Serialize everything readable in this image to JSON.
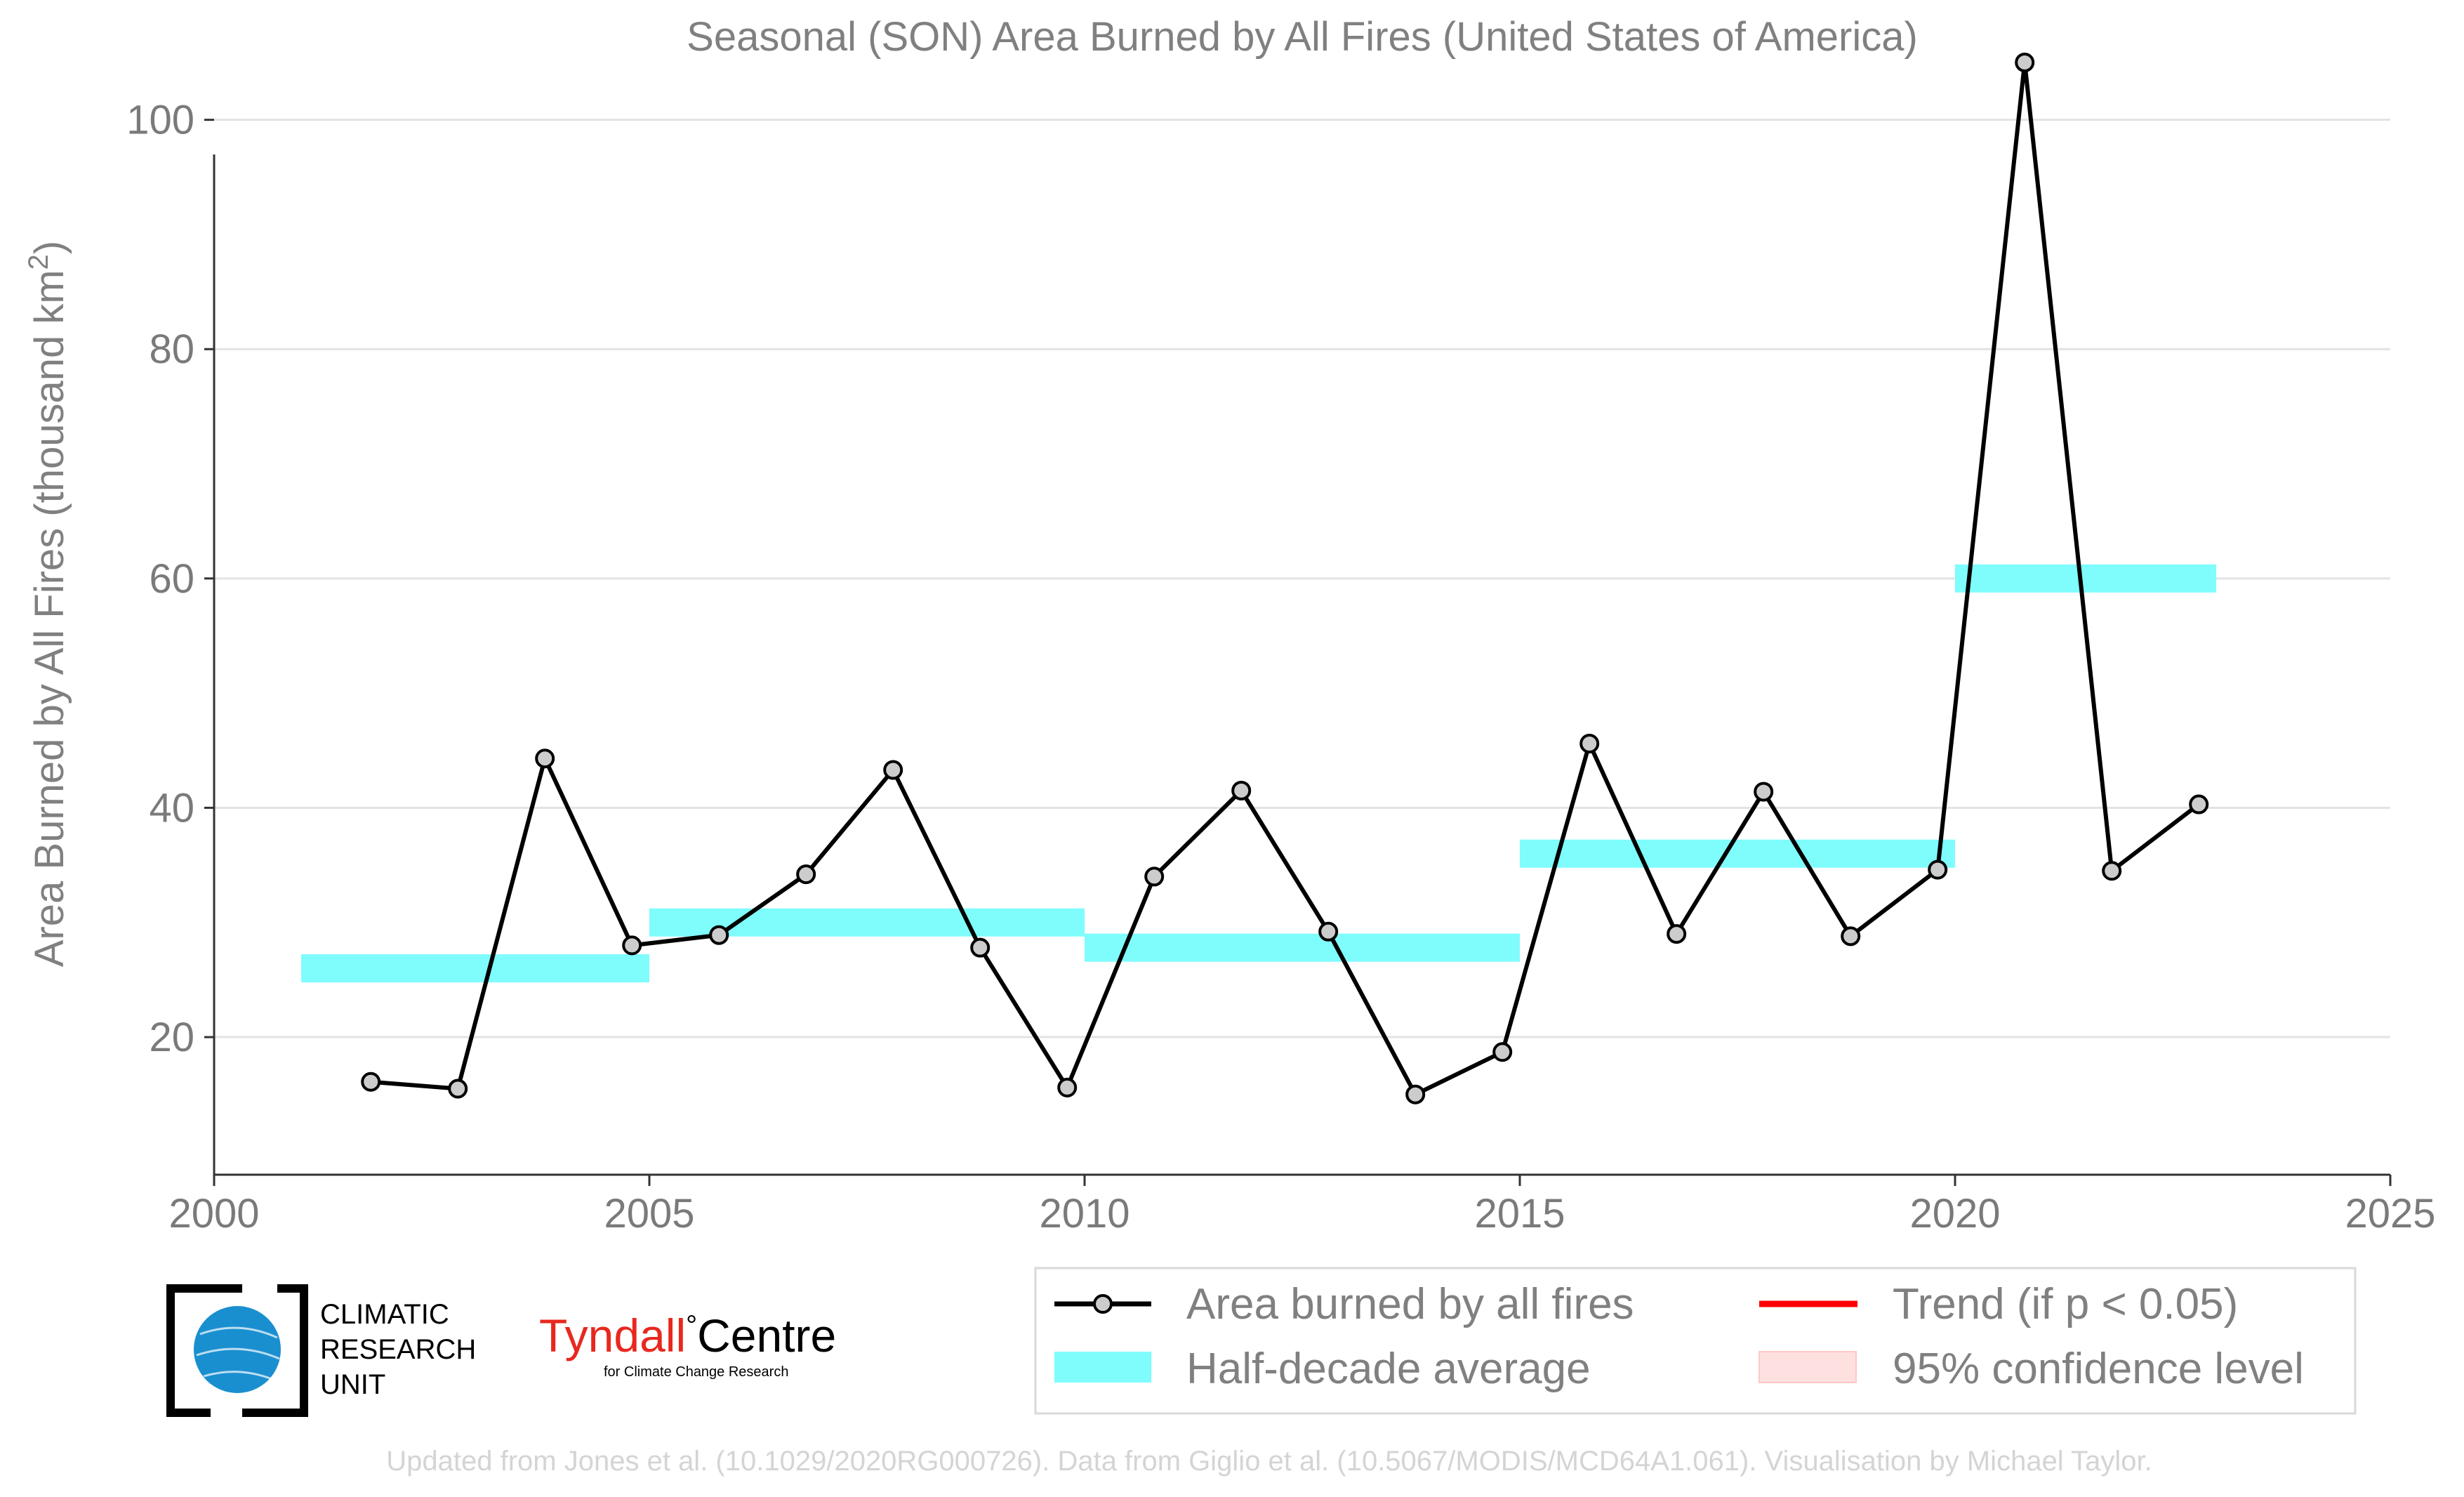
{
  "chart_data": {
    "type": "line",
    "title": "Seasonal (SON) Area Burned by All Fires (United States of America)",
    "ylabel": "Area Burned by All Fires (thousand km",
    "ylabel_superscript": "2",
    "ylabel_suffix": ")",
    "xlabel": "",
    "xlim": [
      2000,
      2025
    ],
    "ylim": [
      8,
      108
    ],
    "xticks": [
      2000,
      2005,
      2010,
      2015,
      2020,
      2025
    ],
    "yticks": [
      20,
      40,
      60,
      80,
      100
    ],
    "grid": true,
    "series": [
      {
        "name": "Area burned by all fires",
        "color": "#000000",
        "marker_fill": "#cccccc",
        "x": [
          2001.8,
          2002.8,
          2003.8,
          2004.8,
          2005.8,
          2006.8,
          2007.8,
          2008.8,
          2009.8,
          2010.8,
          2011.8,
          2012.8,
          2013.8,
          2014.8,
          2015.8,
          2016.8,
          2017.8,
          2018.8,
          2019.8,
          2020.8,
          2021.8,
          2022.8
        ],
        "y": [
          16.1,
          15.5,
          44.3,
          28.0,
          28.9,
          34.2,
          43.3,
          27.8,
          15.6,
          34.0,
          41.5,
          29.2,
          15.0,
          18.7,
          45.6,
          29.0,
          41.4,
          28.8,
          34.6,
          105.0,
          34.5,
          40.3
        ]
      }
    ],
    "half_decade_average": {
      "name": "Half-decade average",
      "color": "#7ffcfc",
      "segments": [
        {
          "x0": 2001,
          "x1": 2005,
          "y": 26.0
        },
        {
          "x0": 2005,
          "x1": 2010,
          "y": 30.0
        },
        {
          "x0": 2010,
          "x1": 2015,
          "y": 27.8
        },
        {
          "x0": 2015,
          "x1": 2020,
          "y": 36.0
        },
        {
          "x0": 2020,
          "x1": 2023,
          "y": 60.0
        }
      ]
    },
    "legend": {
      "placement": "bottom-right",
      "items": [
        {
          "label": "Area burned by all fires",
          "kind": "line-marker",
          "color": "#000000"
        },
        {
          "label": "Trend (if p < 0.05)",
          "kind": "line",
          "color": "#ff0000"
        },
        {
          "label": "Half-decade average",
          "kind": "band",
          "color": "#7ffcfc"
        },
        {
          "label": "95% confidence level",
          "kind": "patch",
          "color": "#ffe0e0"
        }
      ]
    }
  },
  "logos": {
    "cru_line1": "CLIMATIC",
    "cru_line2": "RESEARCH",
    "cru_line3": "UNIT",
    "tyndall_name": "Tyndall",
    "tyndall_degree": "°",
    "tyndall_centre": "Centre",
    "tyndall_sub": "for Climate Change Research",
    "tyndall_color": "#e8281e",
    "cru_globe_color": "#1a8fd0"
  },
  "footer": "Updated from Jones et al. (10.1029/2020RG000726). Data from Giglio et al. (10.5067/MODIS/MCD64A1.061). Visualisation by Michael Taylor."
}
